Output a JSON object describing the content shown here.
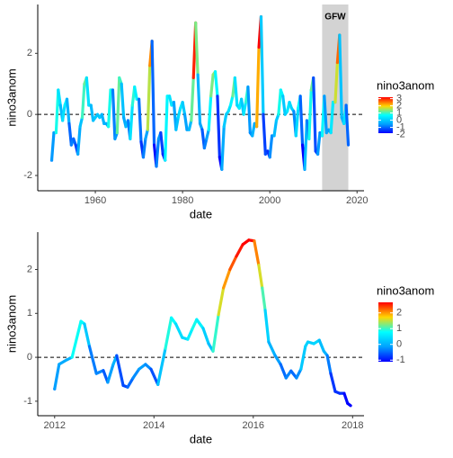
{
  "chart_data": [
    {
      "type": "line",
      "xlabel": "date",
      "ylabel": "nino3anom",
      "legend_title": "nino3anom",
      "xlim": [
        1946.8,
        2021.6
      ],
      "ylim": [
        -2.5,
        3.6
      ],
      "xticks": [
        1960,
        1980,
        2000,
        2020
      ],
      "yticks": [
        -2,
        0,
        2
      ],
      "legend_ticks": [
        3,
        2,
        1,
        0,
        -1,
        -2
      ],
      "colors": [
        "#0000ff",
        "#00a0ff",
        "#00ffff",
        "#ffd700",
        "#ff0000"
      ],
      "hline": 0,
      "annotation": {
        "text": "GFW",
        "xmin": 2012,
        "xmax": 2018
      },
      "x": [
        1950,
        1950.5,
        1951,
        1951.5,
        1952,
        1952.5,
        1953,
        1953.5,
        1954,
        1954.5,
        1955,
        1955.5,
        1956,
        1956.5,
        1957,
        1957.5,
        1958,
        1958.5,
        1959,
        1959.5,
        1960,
        1960.5,
        1961,
        1961.5,
        1962,
        1962.5,
        1963,
        1963.5,
        1964,
        1964.5,
        1965,
        1965.5,
        1966,
        1966.5,
        1967,
        1967.5,
        1968,
        1968.5,
        1969,
        1969.5,
        1970,
        1970.5,
        1971,
        1971.5,
        1972,
        1972.5,
        1973,
        1973.5,
        1974,
        1974.5,
        1975,
        1975.5,
        1976,
        1976.5,
        1977,
        1977.5,
        1978,
        1978.5,
        1979,
        1979.5,
        1980,
        1980.5,
        1981,
        1981.5,
        1982,
        1982.5,
        1983,
        1983.5,
        1984,
        1984.5,
        1985,
        1985.5,
        1986,
        1986.5,
        1987,
        1987.5,
        1988,
        1988.5,
        1989,
        1989.5,
        1990,
        1990.5,
        1991,
        1991.5,
        1992,
        1992.5,
        1993,
        1993.5,
        1994,
        1994.5,
        1995,
        1995.5,
        1996,
        1996.5,
        1997,
        1997.5,
        1998,
        1998.5,
        1999,
        1999.5,
        2000,
        2000.5,
        2001,
        2001.5,
        2002,
        2002.5,
        2003,
        2003.5,
        2004,
        2004.5,
        2005,
        2005.5,
        2006,
        2006.5,
        2007,
        2007.5,
        2008,
        2008.5,
        2009,
        2009.5,
        2010,
        2010.5,
        2011,
        2011.5,
        2012,
        2012.5,
        2013,
        2013.5,
        2014,
        2014.5,
        2015,
        2015.5,
        2016,
        2016.5,
        2017,
        2017.5,
        2018
      ],
      "values": [
        -1.5,
        -0.6,
        -0.6,
        0.8,
        0.3,
        -0.2,
        0.3,
        0.5,
        -0.3,
        -1.0,
        -0.8,
        -1.0,
        -1.3,
        -0.4,
        -0.1,
        1.0,
        1.2,
        0.3,
        0.3,
        -0.2,
        -0.1,
        0.0,
        -0.1,
        0.0,
        -0.3,
        -0.3,
        -0.4,
        0.8,
        0.8,
        -0.8,
        -0.6,
        1.2,
        1.0,
        -0.1,
        -0.4,
        -0.2,
        -0.8,
        0.3,
        0.9,
        0.5,
        0.5,
        -0.9,
        -1.4,
        -0.8,
        -0.5,
        1.6,
        2.4,
        -1.0,
        -1.7,
        -0.8,
        -0.6,
        -1.3,
        -1.5,
        0.6,
        0.6,
        0.3,
        0.4,
        -0.5,
        -0.1,
        0.2,
        0.4,
        0.0,
        -0.5,
        -0.5,
        -0.2,
        1.2,
        3.0,
        1.3,
        -0.3,
        -0.5,
        -1.1,
        -0.8,
        -0.5,
        0.6,
        1.3,
        1.4,
        0.6,
        -1.4,
        -1.8,
        -0.4,
        0.0,
        0.1,
        0.3,
        0.6,
        1.2,
        0.3,
        0.2,
        0.5,
        0.0,
        0.4,
        0.9,
        -0.6,
        -0.7,
        -0.3,
        -0.4,
        2.2,
        3.2,
        0.0,
        -1.3,
        -1.2,
        -1.4,
        -0.7,
        -0.7,
        -0.2,
        0.0,
        0.8,
        0.6,
        0.0,
        0.1,
        0.4,
        0.2,
        0.1,
        -0.7,
        0.2,
        0.6,
        -1.0,
        -1.8,
        -0.2,
        -0.8,
        0.8,
        1.2,
        -1.2,
        -1.3,
        -0.6,
        -0.7,
        0.6,
        -0.6,
        -0.5,
        -0.6,
        0.4,
        0.4,
        1.7,
        2.6,
        -0.1,
        -0.3,
        0.3,
        -1.0
      ]
    },
    {
      "type": "line",
      "xlabel": "date",
      "ylabel": "nino3anom",
      "legend_title": "nino3anom",
      "xlim": [
        2011.66,
        2018.23
      ],
      "ylim": [
        -1.33,
        2.85
      ],
      "xticks": [
        2012,
        2014,
        2016,
        2018
      ],
      "yticks": [
        -1,
        0,
        1,
        2
      ],
      "legend_ticks": [
        2,
        1,
        0,
        -1
      ],
      "colors": [
        "#0000ff",
        "#00a0ff",
        "#00ffff",
        "#ffd700",
        "#ff0000"
      ],
      "hline": 0,
      "x": [
        2012.0,
        2012.09,
        2012.24,
        2012.35,
        2012.53,
        2012.6,
        2012.7,
        2012.84,
        2012.98,
        2013.07,
        2013.18,
        2013.25,
        2013.38,
        2013.47,
        2013.58,
        2013.7,
        2013.83,
        2013.94,
        2014.08,
        2014.23,
        2014.35,
        2014.44,
        2014.57,
        2014.68,
        2014.77,
        2014.86,
        2014.99,
        2015.1,
        2015.19,
        2015.3,
        2015.4,
        2015.53,
        2015.66,
        2015.79,
        2015.91,
        2016.02,
        2016.11,
        2016.18,
        2016.24,
        2016.31,
        2016.44,
        2016.55,
        2016.66,
        2016.76,
        2016.87,
        2016.96,
        2017.05,
        2017.1,
        2017.22,
        2017.33,
        2017.42,
        2017.49,
        2017.56,
        2017.65,
        2017.74,
        2017.83,
        2017.9,
        2017.96
      ],
      "values": [
        -0.72,
        -0.16,
        -0.06,
        0.0,
        0.82,
        0.76,
        0.25,
        -0.37,
        -0.3,
        -0.57,
        -0.16,
        0.04,
        -0.64,
        -0.68,
        -0.47,
        -0.27,
        -0.16,
        -0.27,
        -0.62,
        0.2,
        0.9,
        0.76,
        0.45,
        0.41,
        0.64,
        0.86,
        0.66,
        0.31,
        0.14,
        0.97,
        1.58,
        2.0,
        2.3,
        2.57,
        2.67,
        2.65,
        2.1,
        1.58,
        1.07,
        0.35,
        0.04,
        -0.16,
        -0.47,
        -0.31,
        -0.47,
        -0.27,
        0.25,
        0.35,
        0.31,
        0.39,
        0.14,
        0.04,
        -0.37,
        -0.78,
        -0.82,
        -0.82,
        -1.05,
        -1.1
      ]
    }
  ]
}
